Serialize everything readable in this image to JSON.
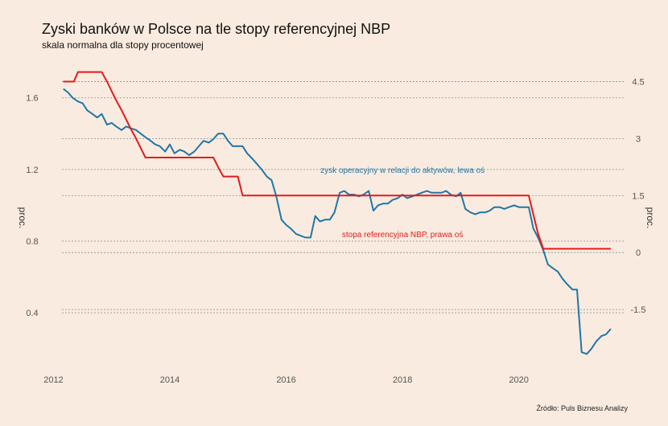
{
  "chart_data": {
    "type": "line",
    "title": "Zyski banków w Polsce na tle stopy referencyjnej NBP",
    "subtitle": "skala normalna dla stopy procentowej",
    "source": "Źródło: Puls Biznesu Analizy",
    "ylabel_left": "proc.",
    "ylabel_right": "proc.",
    "xlim": [
      2011.8,
      2021.9
    ],
    "ylim_left": [
      0.1,
      1.85
    ],
    "ylim_right": [
      -3.0,
      5.25
    ],
    "x_ticks": [
      2012,
      2014,
      2016,
      2018,
      2020
    ],
    "y_ticks_left": [
      0.4,
      0.8,
      1.2,
      1.6
    ],
    "y_ticks_left_labels": [
      "0.4",
      "0.8",
      "1.2",
      "1.6"
    ],
    "y_ticks_right": [
      -1.5,
      0,
      1.5,
      3,
      4.5
    ],
    "y_ticks_right_labels": [
      "-1.5",
      "0",
      "1.5",
      "3",
      "4.5"
    ],
    "gridlines": "horizontal dotted",
    "colors": {
      "left_series": "#1f77a8",
      "right_series": "#e41a1c"
    },
    "series": [
      {
        "name": "zysk operacyjny w relacji do aktywów, lewa oś",
        "axis": "left",
        "color": "#1f77a8",
        "points": [
          [
            2012.17,
            1.65
          ],
          [
            2012.25,
            1.63
          ],
          [
            2012.33,
            1.6
          ],
          [
            2012.42,
            1.58
          ],
          [
            2012.5,
            1.57
          ],
          [
            2012.58,
            1.53
          ],
          [
            2012.67,
            1.51
          ],
          [
            2012.75,
            1.49
          ],
          [
            2012.83,
            1.51
          ],
          [
            2012.92,
            1.45
          ],
          [
            2013.0,
            1.46
          ],
          [
            2013.08,
            1.44
          ],
          [
            2013.17,
            1.42
          ],
          [
            2013.25,
            1.44
          ],
          [
            2013.33,
            1.43
          ],
          [
            2013.42,
            1.42
          ],
          [
            2013.5,
            1.4
          ],
          [
            2013.58,
            1.38
          ],
          [
            2013.67,
            1.36
          ],
          [
            2013.75,
            1.34
          ],
          [
            2013.83,
            1.33
          ],
          [
            2013.92,
            1.3
          ],
          [
            2014.0,
            1.34
          ],
          [
            2014.08,
            1.29
          ],
          [
            2014.17,
            1.31
          ],
          [
            2014.25,
            1.3
          ],
          [
            2014.33,
            1.28
          ],
          [
            2014.42,
            1.3
          ],
          [
            2014.5,
            1.33
          ],
          [
            2014.58,
            1.36
          ],
          [
            2014.67,
            1.35
          ],
          [
            2014.75,
            1.37
          ],
          [
            2014.83,
            1.4
          ],
          [
            2014.92,
            1.4
          ],
          [
            2015.0,
            1.36
          ],
          [
            2015.08,
            1.33
          ],
          [
            2015.17,
            1.33
          ],
          [
            2015.25,
            1.33
          ],
          [
            2015.33,
            1.29
          ],
          [
            2015.42,
            1.26
          ],
          [
            2015.5,
            1.23
          ],
          [
            2015.58,
            1.2
          ],
          [
            2015.67,
            1.16
          ],
          [
            2015.75,
            1.14
          ],
          [
            2015.83,
            1.05
          ],
          [
            2015.92,
            0.92
          ],
          [
            2016.0,
            0.89
          ],
          [
            2016.08,
            0.87
          ],
          [
            2016.17,
            0.84
          ],
          [
            2016.25,
            0.83
          ],
          [
            2016.33,
            0.82
          ],
          [
            2016.42,
            0.82
          ],
          [
            2016.5,
            0.94
          ],
          [
            2016.58,
            0.91
          ],
          [
            2016.67,
            0.92
          ],
          [
            2016.75,
            0.92
          ],
          [
            2016.83,
            0.96
          ],
          [
            2016.92,
            1.07
          ],
          [
            2017.0,
            1.08
          ],
          [
            2017.08,
            1.06
          ],
          [
            2017.17,
            1.06
          ],
          [
            2017.25,
            1.05
          ],
          [
            2017.33,
            1.06
          ],
          [
            2017.42,
            1.08
          ],
          [
            2017.5,
            0.97
          ],
          [
            2017.58,
            1.0
          ],
          [
            2017.67,
            1.01
          ],
          [
            2017.75,
            1.01
          ],
          [
            2017.83,
            1.03
          ],
          [
            2017.92,
            1.04
          ],
          [
            2018.0,
            1.06
          ],
          [
            2018.08,
            1.04
          ],
          [
            2018.17,
            1.05
          ],
          [
            2018.25,
            1.06
          ],
          [
            2018.33,
            1.07
          ],
          [
            2018.42,
            1.08
          ],
          [
            2018.5,
            1.07
          ],
          [
            2018.58,
            1.07
          ],
          [
            2018.67,
            1.07
          ],
          [
            2018.75,
            1.08
          ],
          [
            2018.83,
            1.06
          ],
          [
            2018.92,
            1.05
          ],
          [
            2019.0,
            1.07
          ],
          [
            2019.08,
            0.98
          ],
          [
            2019.17,
            0.96
          ],
          [
            2019.25,
            0.95
          ],
          [
            2019.33,
            0.96
          ],
          [
            2019.42,
            0.96
          ],
          [
            2019.5,
            0.97
          ],
          [
            2019.58,
            0.99
          ],
          [
            2019.67,
            0.99
          ],
          [
            2019.75,
            0.98
          ],
          [
            2019.83,
            0.99
          ],
          [
            2019.92,
            1.0
          ],
          [
            2020.0,
            0.99
          ],
          [
            2020.08,
            0.99
          ],
          [
            2020.17,
            0.99
          ],
          [
            2020.25,
            0.87
          ],
          [
            2020.33,
            0.82
          ],
          [
            2020.42,
            0.75
          ],
          [
            2020.5,
            0.67
          ],
          [
            2020.58,
            0.65
          ],
          [
            2020.67,
            0.63
          ],
          [
            2020.75,
            0.59
          ],
          [
            2020.83,
            0.56
          ],
          [
            2020.92,
            0.53
          ],
          [
            2021.0,
            0.53
          ],
          [
            2021.08,
            0.18
          ],
          [
            2021.17,
            0.17
          ],
          [
            2021.25,
            0.2
          ],
          [
            2021.33,
            0.24
          ],
          [
            2021.42,
            0.27
          ],
          [
            2021.5,
            0.28
          ],
          [
            2021.58,
            0.31
          ]
        ]
      },
      {
        "name": "stopa referencyjna NBP, prawa oś",
        "axis": "right",
        "color": "#e41a1c",
        "points": [
          [
            2012.17,
            4.5
          ],
          [
            2012.35,
            4.5
          ],
          [
            2012.42,
            4.75
          ],
          [
            2012.83,
            4.75
          ],
          [
            2012.92,
            4.5
          ],
          [
            2013.0,
            4.25
          ],
          [
            2013.08,
            4.0
          ],
          [
            2013.17,
            3.75
          ],
          [
            2013.25,
            3.5
          ],
          [
            2013.33,
            3.25
          ],
          [
            2013.42,
            3.0
          ],
          [
            2013.5,
            2.75
          ],
          [
            2013.58,
            2.5
          ],
          [
            2013.67,
            2.5
          ],
          [
            2014.75,
            2.5
          ],
          [
            2014.83,
            2.25
          ],
          [
            2014.92,
            2.0
          ],
          [
            2015.17,
            2.0
          ],
          [
            2015.25,
            1.5
          ],
          [
            2020.17,
            1.5
          ],
          [
            2020.25,
            1.0
          ],
          [
            2020.33,
            0.5
          ],
          [
            2020.42,
            0.1
          ],
          [
            2020.5,
            0.1
          ],
          [
            2021.58,
            0.1
          ]
        ]
      }
    ],
    "annotations": [
      {
        "text": "zysk operacyjny w relacji do aktywów, lewa oś",
        "series": "left",
        "x": 2018.0,
        "y": 1.2
      },
      {
        "text": "stopa referencyjna NBP, prawa oś",
        "series": "left",
        "x": 2018.0,
        "y": 0.84
      }
    ]
  }
}
